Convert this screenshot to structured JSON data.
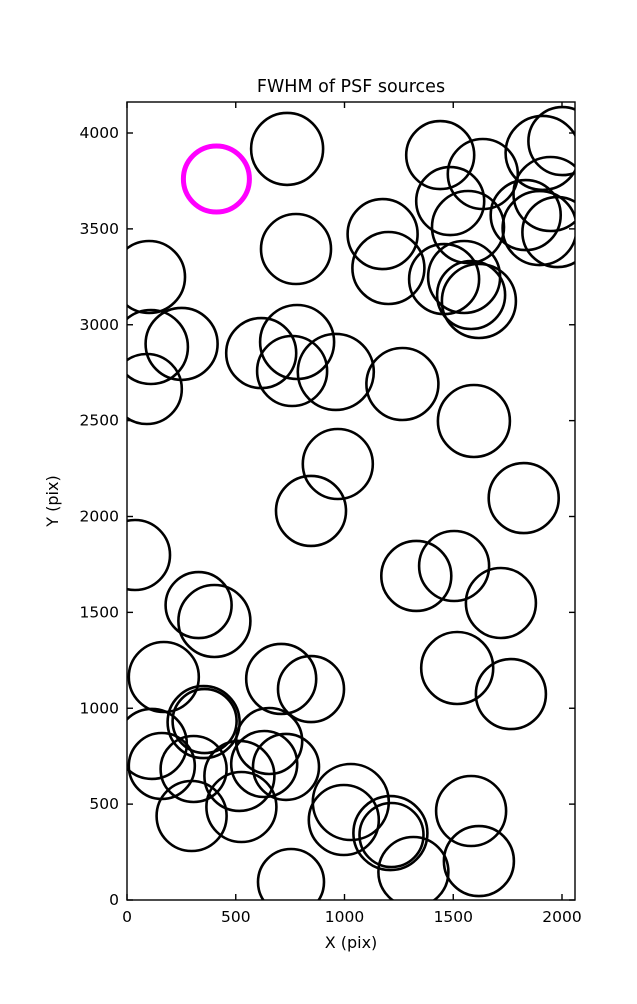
{
  "chart_data": {
    "type": "scatter",
    "title": "FWHM of PSF sources",
    "xlabel": "X (pix)",
    "ylabel": "Y (pix)",
    "xlim": [
      0,
      2048
    ],
    "ylim": [
      0,
      4160
    ],
    "xticks": [
      0,
      500,
      1000,
      1500,
      2000
    ],
    "yticks": [
      0,
      500,
      1000,
      1500,
      2000,
      2500,
      3000,
      3500,
      4000
    ],
    "grid": false,
    "legend": "none",
    "marker_color": "#000000",
    "highlight_color": "#ff00ff",
    "highlight_point": {
      "x": 411,
      "y": 3760,
      "r": 33
    },
    "points": [
      {
        "x": 736,
        "y": 3917,
        "r": 36
      },
      {
        "x": 777,
        "y": 3395,
        "r": 35
      },
      {
        "x": 101,
        "y": 3249,
        "r": 36
      },
      {
        "x": 1440,
        "y": 3885,
        "r": 34
      },
      {
        "x": 1636,
        "y": 3786,
        "r": 35
      },
      {
        "x": 1911,
        "y": 3896,
        "r": 37
      },
      {
        "x": 2002,
        "y": 3958,
        "r": 34
      },
      {
        "x": 1486,
        "y": 3645,
        "r": 34
      },
      {
        "x": 1568,
        "y": 3510,
        "r": 36
      },
      {
        "x": 1947,
        "y": 3682,
        "r": 37
      },
      {
        "x": 1979,
        "y": 3483,
        "r": 35
      },
      {
        "x": 1897,
        "y": 3504,
        "r": 37
      },
      {
        "x": 1833,
        "y": 3572,
        "r": 35
      },
      {
        "x": 1550,
        "y": 3249,
        "r": 36
      },
      {
        "x": 1618,
        "y": 3124,
        "r": 37
      },
      {
        "x": 1175,
        "y": 3473,
        "r": 35
      },
      {
        "x": 1202,
        "y": 3296,
        "r": 36
      },
      {
        "x": 1458,
        "y": 3238,
        "r": 35
      },
      {
        "x": 1582,
        "y": 3155,
        "r": 34
      },
      {
        "x": 110,
        "y": 2884,
        "r": 37
      },
      {
        "x": 251,
        "y": 2900,
        "r": 36
      },
      {
        "x": 91,
        "y": 2665,
        "r": 35
      },
      {
        "x": 782,
        "y": 2910,
        "r": 37
      },
      {
        "x": 617,
        "y": 2852,
        "r": 35
      },
      {
        "x": 759,
        "y": 2759,
        "r": 35
      },
      {
        "x": 960,
        "y": 2754,
        "r": 38
      },
      {
        "x": 1266,
        "y": 2691,
        "r": 36
      },
      {
        "x": 1595,
        "y": 2498,
        "r": 36
      },
      {
        "x": 969,
        "y": 2274,
        "r": 35
      },
      {
        "x": 846,
        "y": 2029,
        "r": 35
      },
      {
        "x": 1824,
        "y": 2096,
        "r": 35
      },
      {
        "x": 37,
        "y": 1799,
        "r": 35
      },
      {
        "x": 1330,
        "y": 1690,
        "r": 35
      },
      {
        "x": 1504,
        "y": 1742,
        "r": 35
      },
      {
        "x": 1719,
        "y": 1549,
        "r": 35
      },
      {
        "x": 329,
        "y": 1538,
        "r": 33
      },
      {
        "x": 402,
        "y": 1455,
        "r": 36
      },
      {
        "x": 1518,
        "y": 1210,
        "r": 36
      },
      {
        "x": 1765,
        "y": 1074,
        "r": 35
      },
      {
        "x": 169,
        "y": 1163,
        "r": 35
      },
      {
        "x": 709,
        "y": 1153,
        "r": 35
      },
      {
        "x": 846,
        "y": 1100,
        "r": 33
      },
      {
        "x": 352,
        "y": 928,
        "r": 36
      },
      {
        "x": 357,
        "y": 933,
        "r": 32
      },
      {
        "x": 654,
        "y": 829,
        "r": 33
      },
      {
        "x": 114,
        "y": 814,
        "r": 35
      },
      {
        "x": 160,
        "y": 699,
        "r": 33
      },
      {
        "x": 306,
        "y": 683,
        "r": 33
      },
      {
        "x": 517,
        "y": 647,
        "r": 35
      },
      {
        "x": 631,
        "y": 709,
        "r": 33
      },
      {
        "x": 297,
        "y": 438,
        "r": 35
      },
      {
        "x": 526,
        "y": 485,
        "r": 35
      },
      {
        "x": 731,
        "y": 694,
        "r": 33
      },
      {
        "x": 754,
        "y": 94,
        "r": 33
      },
      {
        "x": 1029,
        "y": 511,
        "r": 38
      },
      {
        "x": 997,
        "y": 417,
        "r": 35
      },
      {
        "x": 1211,
        "y": 349,
        "r": 37
      },
      {
        "x": 1216,
        "y": 339,
        "r": 32
      },
      {
        "x": 1317,
        "y": 146,
        "r": 35
      },
      {
        "x": 1582,
        "y": 464,
        "r": 35
      },
      {
        "x": 1618,
        "y": 203,
        "r": 35
      }
    ]
  }
}
